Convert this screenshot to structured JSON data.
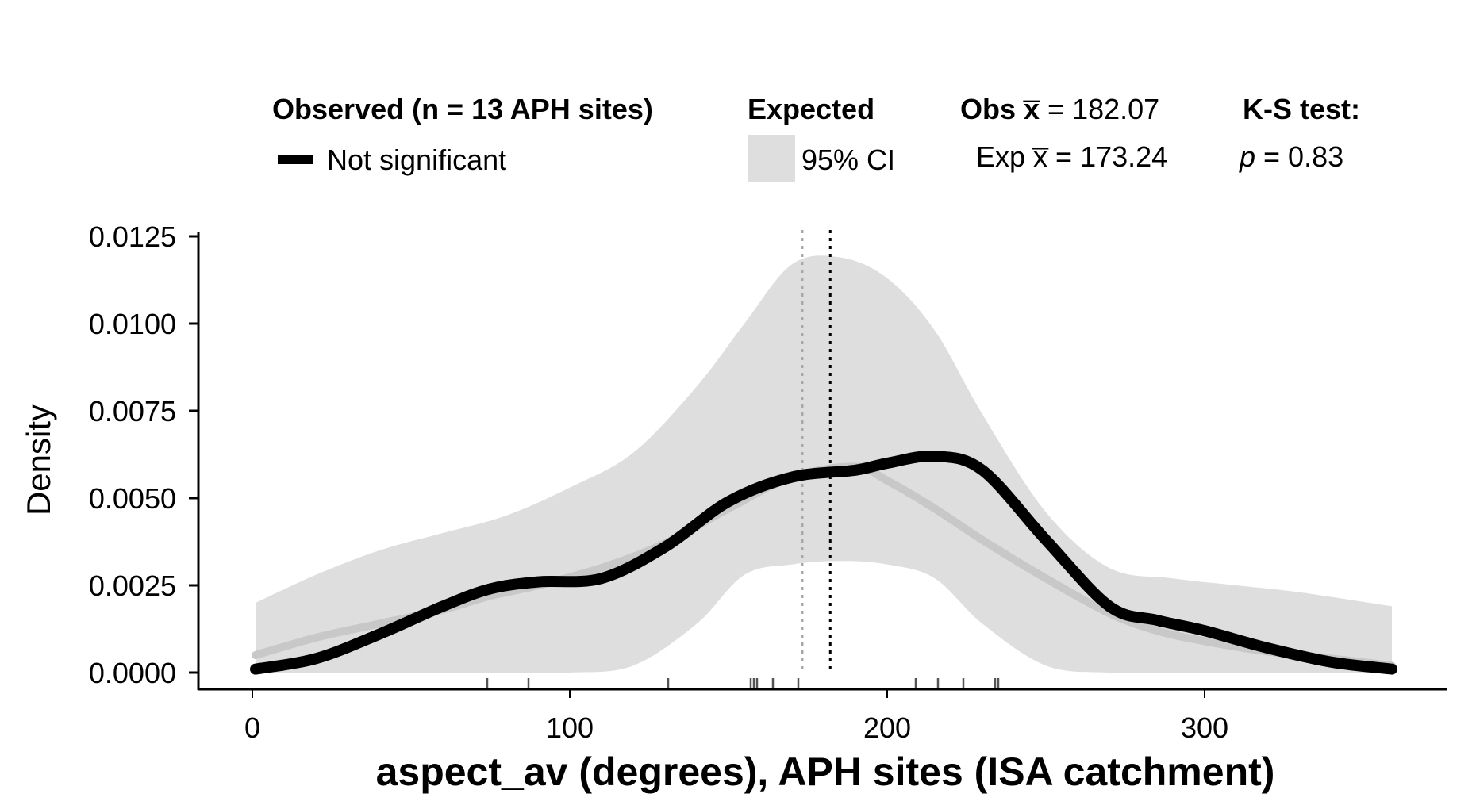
{
  "legend": {
    "observed_title": "Observed (n = 13 APH sites)",
    "observed_item": "Not significant",
    "expected_title": "Expected",
    "expected_item": "95% CI",
    "obs_mean_label": "Obs x̅",
    "obs_mean_eq": " = 182.07",
    "exp_mean_label": "Exp x̅",
    "exp_mean_eq": " = 173.24",
    "ks_title": "K-S test:",
    "ks_p_symbol": "p",
    "ks_p_eq": " = 0.83"
  },
  "colors": {
    "observed_line": "#000000",
    "expected_line": "#c8c8c8",
    "ci_fill": "#dedede",
    "obs_mean_line": "#000000",
    "exp_mean_line": "#a8a8a8"
  },
  "chart_data": {
    "type": "line",
    "title": "",
    "xlabel": "aspect_av (degrees), APH sites (ISA catchment)",
    "ylabel": "Density",
    "xlim": [
      0,
      360
    ],
    "ylim": [
      0,
      0.0125
    ],
    "x_ticks": [
      0,
      100,
      200,
      300
    ],
    "x_tick_labels": [
      "0",
      "100",
      "200",
      "300"
    ],
    "y_ticks": [
      0,
      0.0025,
      0.005,
      0.0075,
      0.01,
      0.0125
    ],
    "y_tick_labels": [
      "0.0000",
      "0.0025",
      "0.0050",
      "0.0075",
      "0.0100",
      "0.0125"
    ],
    "grid": false,
    "legend_position": "top",
    "x": [
      1,
      20,
      40,
      60,
      75,
      90,
      110,
      130,
      150,
      170,
      190,
      200,
      215,
      230,
      250,
      270,
      285,
      300,
      320,
      340,
      359
    ],
    "series": [
      {
        "name": "Not significant",
        "values": [
          0.0001,
          0.0004,
          0.0011,
          0.0019,
          0.0024,
          0.0026,
          0.0027,
          0.0036,
          0.0049,
          0.0056,
          0.0058,
          0.006,
          0.0062,
          0.0058,
          0.0038,
          0.0019,
          0.0015,
          0.0012,
          0.0007,
          0.0003,
          0.0001
        ]
      },
      {
        "name": "",
        "values": [
          0.0005,
          0.001,
          0.0014,
          0.0018,
          0.0022,
          0.0025,
          0.003,
          0.0037,
          0.0047,
          0.0056,
          0.0059,
          0.0055,
          0.0047,
          0.0038,
          0.0027,
          0.0017,
          0.0012,
          0.0009,
          0.0006,
          0.0004,
          0.0002
        ]
      }
    ],
    "ci_band": {
      "name": "95% CI",
      "x": [
        1,
        20,
        40,
        60,
        80,
        100,
        120,
        140,
        155,
        170,
        185,
        200,
        215,
        230,
        250,
        270,
        290,
        310,
        330,
        359
      ],
      "lower": [
        0,
        0,
        0,
        0,
        0,
        0,
        0.0002,
        0.0014,
        0.0028,
        0.0031,
        0.0032,
        0.0031,
        0.0027,
        0.0014,
        0.0002,
        0,
        0,
        0,
        0,
        0
      ],
      "upper": [
        0.002,
        0.0028,
        0.0035,
        0.004,
        0.0045,
        0.0053,
        0.0063,
        0.0082,
        0.01,
        0.0117,
        0.0119,
        0.0113,
        0.0098,
        0.0074,
        0.0046,
        0.003,
        0.0027,
        0.0025,
        0.0023,
        0.0019
      ]
    },
    "obs_mean": 182.07,
    "exp_mean": 173.24,
    "rug": [
      74,
      87,
      131,
      157,
      158,
      159,
      164,
      172,
      209,
      216,
      224,
      234,
      235
    ]
  }
}
